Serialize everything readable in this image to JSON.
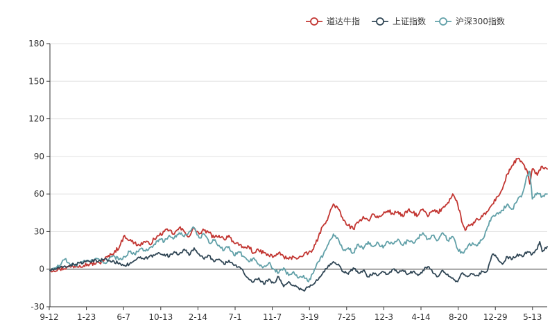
{
  "chart_data": {
    "type": "line",
    "title": "",
    "xlabel": "",
    "ylabel": "",
    "ylim": [
      -30,
      180
    ],
    "yticks": [
      -30,
      0,
      30,
      60,
      90,
      120,
      150,
      180
    ],
    "xticks": [
      "9-12",
      "1-23",
      "6-7",
      "10-13",
      "2-14",
      "7-1",
      "11-7",
      "3-19",
      "7-25",
      "12-3",
      "4-14",
      "8-20",
      "12-29",
      "5-13"
    ],
    "grid": true,
    "legend_position": "top-right",
    "x_range": [
      0,
      100
    ],
    "series": [
      {
        "name": "道达牛指",
        "color": "#c23531",
        "points": [
          [
            0,
            -1
          ],
          [
            2,
            0
          ],
          [
            4,
            2
          ],
          [
            6,
            3
          ],
          [
            8,
            4
          ],
          [
            10,
            5
          ],
          [
            11,
            8
          ],
          [
            12.5,
            12
          ],
          [
            14,
            18
          ],
          [
            15,
            27
          ],
          [
            16,
            23
          ],
          [
            17,
            21
          ],
          [
            18,
            19
          ],
          [
            19,
            22
          ],
          [
            20,
            20
          ],
          [
            21,
            24
          ],
          [
            22,
            27
          ],
          [
            23,
            30
          ],
          [
            24,
            31
          ],
          [
            25,
            28
          ],
          [
            26,
            33
          ],
          [
            27,
            30
          ],
          [
            28,
            26
          ],
          [
            29,
            33
          ],
          [
            30,
            28
          ],
          [
            31,
            31
          ],
          [
            32,
            29
          ],
          [
            33,
            25
          ],
          [
            34,
            27
          ],
          [
            35,
            24
          ],
          [
            36,
            27
          ],
          [
            37,
            21
          ],
          [
            38,
            19
          ],
          [
            39,
            17
          ],
          [
            40,
            18
          ],
          [
            41,
            13
          ],
          [
            42,
            15
          ],
          [
            43,
            13
          ],
          [
            44,
            11
          ],
          [
            45,
            10
          ],
          [
            46,
            13
          ],
          [
            47,
            10
          ],
          [
            48,
            8
          ],
          [
            49,
            10
          ],
          [
            50,
            9
          ],
          [
            51,
            11
          ],
          [
            52,
            13
          ],
          [
            53,
            16
          ],
          [
            54,
            26
          ],
          [
            55,
            35
          ],
          [
            56,
            42
          ],
          [
            57,
            52
          ],
          [
            58,
            48
          ],
          [
            59,
            39
          ],
          [
            60,
            35
          ],
          [
            61,
            32
          ],
          [
            62,
            37
          ],
          [
            63,
            42
          ],
          [
            64,
            39
          ],
          [
            65,
            44
          ],
          [
            66,
            41
          ],
          [
            67,
            44
          ],
          [
            68,
            47
          ],
          [
            69,
            44
          ],
          [
            70,
            46
          ],
          [
            71,
            42
          ],
          [
            72,
            47
          ],
          [
            73,
            45
          ],
          [
            74,
            43
          ],
          [
            75,
            48
          ],
          [
            76,
            42
          ],
          [
            77,
            47
          ],
          [
            78,
            45
          ],
          [
            79,
            49
          ],
          [
            80,
            53
          ],
          [
            81,
            60
          ],
          [
            82,
            52
          ],
          [
            83,
            36
          ],
          [
            83.5,
            31
          ],
          [
            84,
            34
          ],
          [
            85,
            35
          ],
          [
            86,
            40
          ],
          [
            87,
            42
          ],
          [
            88,
            46
          ],
          [
            89,
            52
          ],
          [
            90,
            58
          ],
          [
            91,
            64
          ],
          [
            92,
            76
          ],
          [
            93,
            83
          ],
          [
            94,
            88
          ],
          [
            95,
            85
          ],
          [
            96,
            78
          ],
          [
            96.5,
            68
          ],
          [
            97,
            80
          ],
          [
            98,
            75
          ],
          [
            99,
            82
          ],
          [
            100,
            80
          ]
        ]
      },
      {
        "name": "上证指数",
        "color": "#2f4554",
        "points": [
          [
            0,
            -1
          ],
          [
            2,
            1
          ],
          [
            4,
            3
          ],
          [
            6,
            5
          ],
          [
            8,
            6
          ],
          [
            10,
            7
          ],
          [
            11,
            8
          ],
          [
            12.5,
            6
          ],
          [
            14,
            5
          ],
          [
            15,
            3
          ],
          [
            16,
            4
          ],
          [
            17,
            7
          ],
          [
            18,
            9
          ],
          [
            19,
            8
          ],
          [
            20,
            10
          ],
          [
            21,
            11
          ],
          [
            22,
            13
          ],
          [
            23,
            12
          ],
          [
            24,
            10
          ],
          [
            25,
            14
          ],
          [
            26,
            12
          ],
          [
            27,
            16
          ],
          [
            28,
            11
          ],
          [
            29,
            17
          ],
          [
            30,
            12
          ],
          [
            31,
            8
          ],
          [
            32,
            11
          ],
          [
            33,
            6
          ],
          [
            34,
            8
          ],
          [
            35,
            4
          ],
          [
            36,
            7
          ],
          [
            37,
            3
          ],
          [
            38,
            2
          ],
          [
            39,
            -3
          ],
          [
            40,
            -8
          ],
          [
            41,
            -10
          ],
          [
            42,
            -7
          ],
          [
            43,
            -12
          ],
          [
            44,
            -8
          ],
          [
            45,
            -11
          ],
          [
            46,
            -6
          ],
          [
            47,
            -14
          ],
          [
            48,
            -10
          ],
          [
            49,
            -13
          ],
          [
            50,
            -15
          ],
          [
            51,
            -17
          ],
          [
            52,
            -14
          ],
          [
            53,
            -12
          ],
          [
            54,
            -8
          ],
          [
            55,
            -2
          ],
          [
            56,
            3
          ],
          [
            57,
            6
          ],
          [
            58,
            4
          ],
          [
            59,
            -2
          ],
          [
            60,
            -4
          ],
          [
            61,
            1
          ],
          [
            62,
            -3
          ],
          [
            63,
            -1
          ],
          [
            64,
            -6
          ],
          [
            65,
            -3
          ],
          [
            66,
            -5
          ],
          [
            67,
            -2
          ],
          [
            68,
            -4
          ],
          [
            69,
            0
          ],
          [
            70,
            -3
          ],
          [
            71,
            -1
          ],
          [
            72,
            -4
          ],
          [
            73,
            -2
          ],
          [
            74,
            -5
          ],
          [
            75,
            -1
          ],
          [
            76,
            2
          ],
          [
            77,
            -3
          ],
          [
            78,
            -6
          ],
          [
            79,
            -1
          ],
          [
            80,
            -4
          ],
          [
            81,
            -7
          ],
          [
            82,
            -10
          ],
          [
            83,
            -3
          ],
          [
            84,
            -6
          ],
          [
            85,
            -4
          ],
          [
            86,
            -5
          ],
          [
            87,
            -2
          ],
          [
            88,
            -1
          ],
          [
            89,
            12
          ],
          [
            90,
            9
          ],
          [
            91,
            4
          ],
          [
            92,
            10
          ],
          [
            93,
            8
          ],
          [
            94,
            12
          ],
          [
            95,
            10
          ],
          [
            96,
            14
          ],
          [
            97,
            12
          ],
          [
            98,
            16
          ],
          [
            98.5,
            22
          ],
          [
            99,
            14
          ],
          [
            100,
            18
          ]
        ]
      },
      {
        "name": "沪深300指数",
        "color": "#61a0a8",
        "points": [
          [
            0,
            -1
          ],
          [
            1,
            1
          ],
          [
            2,
            3
          ],
          [
            3,
            8
          ],
          [
            4,
            4
          ],
          [
            5,
            3
          ],
          [
            6,
            5
          ],
          [
            7,
            7
          ],
          [
            8,
            6
          ],
          [
            9,
            8
          ],
          [
            10,
            7
          ],
          [
            11,
            5
          ],
          [
            12.5,
            10
          ],
          [
            14,
            8
          ],
          [
            15,
            10
          ],
          [
            16,
            14
          ],
          [
            17,
            12
          ],
          [
            18,
            16
          ],
          [
            19,
            15
          ],
          [
            20,
            17
          ],
          [
            21,
            20
          ],
          [
            22,
            24
          ],
          [
            23,
            22
          ],
          [
            24,
            27
          ],
          [
            25,
            25
          ],
          [
            26,
            29
          ],
          [
            27,
            26
          ],
          [
            28,
            30
          ],
          [
            29,
            33
          ],
          [
            30,
            25
          ],
          [
            31,
            28
          ],
          [
            32,
            21
          ],
          [
            33,
            23
          ],
          [
            34,
            19
          ],
          [
            35,
            15
          ],
          [
            36,
            18
          ],
          [
            37,
            11
          ],
          [
            38,
            14
          ],
          [
            39,
            10
          ],
          [
            40,
            6
          ],
          [
            41,
            9
          ],
          [
            42,
            4
          ],
          [
            43,
            2
          ],
          [
            44,
            5
          ],
          [
            45,
            0
          ],
          [
            46,
            -3
          ],
          [
            47,
            1
          ],
          [
            48,
            -5
          ],
          [
            49,
            -2
          ],
          [
            50,
            -7
          ],
          [
            51,
            -5
          ],
          [
            52,
            -10
          ],
          [
            53,
            -3
          ],
          [
            54,
            6
          ],
          [
            55,
            12
          ],
          [
            56,
            20
          ],
          [
            57,
            28
          ],
          [
            58,
            24
          ],
          [
            59,
            15
          ],
          [
            60,
            17
          ],
          [
            61,
            13
          ],
          [
            62,
            20
          ],
          [
            63,
            16
          ],
          [
            64,
            22
          ],
          [
            65,
            18
          ],
          [
            66,
            21
          ],
          [
            67,
            17
          ],
          [
            68,
            22
          ],
          [
            69,
            20
          ],
          [
            70,
            24
          ],
          [
            71,
            19
          ],
          [
            72,
            23
          ],
          [
            73,
            21
          ],
          [
            74,
            25
          ],
          [
            75,
            29
          ],
          [
            76,
            24
          ],
          [
            77,
            27
          ],
          [
            78,
            23
          ],
          [
            79,
            29
          ],
          [
            80,
            23
          ],
          [
            81,
            26
          ],
          [
            82,
            16
          ],
          [
            83,
            13
          ],
          [
            84,
            18
          ],
          [
            85,
            21
          ],
          [
            86,
            19
          ],
          [
            87,
            24
          ],
          [
            88,
            34
          ],
          [
            89,
            42
          ],
          [
            90,
            45
          ],
          [
            91,
            47
          ],
          [
            92,
            52
          ],
          [
            93,
            48
          ],
          [
            94,
            55
          ],
          [
            95,
            60
          ],
          [
            96,
            75
          ],
          [
            96.5,
            78
          ],
          [
            97,
            56
          ],
          [
            98,
            61
          ],
          [
            99,
            58
          ],
          [
            100,
            60
          ]
        ]
      }
    ]
  }
}
